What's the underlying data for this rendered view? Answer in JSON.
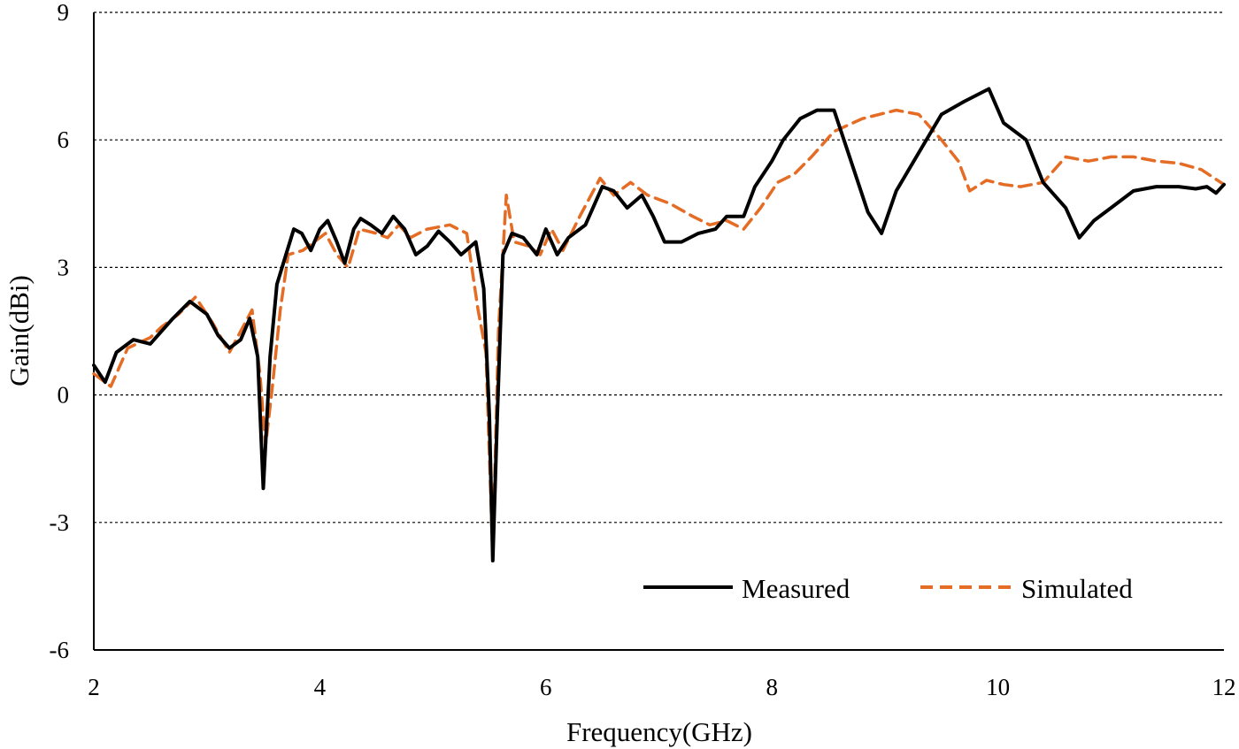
{
  "chart_data": {
    "type": "line",
    "title": "",
    "xlabel": "Frequency(GHz)",
    "ylabel": "Gain(dBi)",
    "xlim": [
      2,
      12
    ],
    "ylim": [
      -6,
      9
    ],
    "xticks": [
      2,
      4,
      6,
      8,
      10,
      12
    ],
    "yticks": [
      -6,
      -3,
      0,
      3,
      6,
      9
    ],
    "xtick_labels": [
      "2",
      "4",
      "6",
      "8",
      "10",
      "12"
    ],
    "ytick_labels": [
      "-6",
      "-3",
      "0",
      "3",
      "6",
      "9"
    ],
    "grid": "horizontal dashed",
    "legend_position": "bottom-right",
    "series": [
      {
        "name": "Measured",
        "color": "#000000",
        "style": "solid",
        "points": [
          [
            2.0,
            0.7
          ],
          [
            2.1,
            0.3
          ],
          [
            2.2,
            1.0
          ],
          [
            2.35,
            1.3
          ],
          [
            2.5,
            1.2
          ],
          [
            2.7,
            1.8
          ],
          [
            2.85,
            2.2
          ],
          [
            3.0,
            1.9
          ],
          [
            3.1,
            1.4
          ],
          [
            3.2,
            1.1
          ],
          [
            3.3,
            1.3
          ],
          [
            3.38,
            1.8
          ],
          [
            3.45,
            0.9
          ],
          [
            3.5,
            -2.2
          ],
          [
            3.56,
            0.9
          ],
          [
            3.62,
            2.6
          ],
          [
            3.7,
            3.3
          ],
          [
            3.77,
            3.9
          ],
          [
            3.84,
            3.8
          ],
          [
            3.92,
            3.4
          ],
          [
            4.0,
            3.9
          ],
          [
            4.07,
            4.1
          ],
          [
            4.15,
            3.6
          ],
          [
            4.22,
            3.1
          ],
          [
            4.3,
            3.9
          ],
          [
            4.36,
            4.15
          ],
          [
            4.45,
            4.0
          ],
          [
            4.55,
            3.8
          ],
          [
            4.65,
            4.2
          ],
          [
            4.75,
            3.9
          ],
          [
            4.85,
            3.3
          ],
          [
            4.95,
            3.5
          ],
          [
            5.05,
            3.85
          ],
          [
            5.15,
            3.6
          ],
          [
            5.25,
            3.3
          ],
          [
            5.38,
            3.6
          ],
          [
            5.45,
            2.5
          ],
          [
            5.5,
            -0.5
          ],
          [
            5.53,
            -3.9
          ],
          [
            5.57,
            -0.5
          ],
          [
            5.62,
            3.3
          ],
          [
            5.7,
            3.8
          ],
          [
            5.8,
            3.7
          ],
          [
            5.92,
            3.3
          ],
          [
            6.0,
            3.9
          ],
          [
            6.1,
            3.3
          ],
          [
            6.2,
            3.7
          ],
          [
            6.35,
            4.0
          ],
          [
            6.5,
            4.9
          ],
          [
            6.6,
            4.8
          ],
          [
            6.72,
            4.4
          ],
          [
            6.85,
            4.7
          ],
          [
            6.95,
            4.2
          ],
          [
            7.05,
            3.6
          ],
          [
            7.2,
            3.6
          ],
          [
            7.35,
            3.8
          ],
          [
            7.5,
            3.9
          ],
          [
            7.6,
            4.2
          ],
          [
            7.75,
            4.2
          ],
          [
            7.85,
            4.9
          ],
          [
            8.0,
            5.5
          ],
          [
            8.1,
            6.0
          ],
          [
            8.25,
            6.5
          ],
          [
            8.4,
            6.7
          ],
          [
            8.55,
            6.7
          ],
          [
            8.7,
            5.5
          ],
          [
            8.85,
            4.3
          ],
          [
            8.97,
            3.8
          ],
          [
            9.1,
            4.8
          ],
          [
            9.3,
            5.7
          ],
          [
            9.5,
            6.6
          ],
          [
            9.7,
            6.9
          ],
          [
            9.92,
            7.2
          ],
          [
            10.05,
            6.4
          ],
          [
            10.25,
            6.0
          ],
          [
            10.4,
            5.0
          ],
          [
            10.6,
            4.4
          ],
          [
            10.72,
            3.7
          ],
          [
            10.85,
            4.1
          ],
          [
            11.0,
            4.4
          ],
          [
            11.2,
            4.8
          ],
          [
            11.4,
            4.9
          ],
          [
            11.6,
            4.9
          ],
          [
            11.75,
            4.85
          ],
          [
            11.85,
            4.9
          ],
          [
            11.93,
            4.75
          ],
          [
            12.0,
            4.95
          ]
        ]
      },
      {
        "name": "Simulated",
        "color": "#E46C24",
        "style": "dashed",
        "points": [
          [
            2.0,
            0.5
          ],
          [
            2.15,
            0.2
          ],
          [
            2.3,
            1.1
          ],
          [
            2.5,
            1.35
          ],
          [
            2.6,
            1.6
          ],
          [
            2.75,
            1.9
          ],
          [
            2.9,
            2.3
          ],
          [
            3.05,
            1.7
          ],
          [
            3.2,
            1.0
          ],
          [
            3.3,
            1.5
          ],
          [
            3.4,
            2.0
          ],
          [
            3.47,
            0.5
          ],
          [
            3.52,
            -1.2
          ],
          [
            3.58,
            0.2
          ],
          [
            3.65,
            2.0
          ],
          [
            3.72,
            3.3
          ],
          [
            3.85,
            3.4
          ],
          [
            3.95,
            3.6
          ],
          [
            4.05,
            3.8
          ],
          [
            4.15,
            3.3
          ],
          [
            4.25,
            3.0
          ],
          [
            4.35,
            3.9
          ],
          [
            4.5,
            3.8
          ],
          [
            4.6,
            3.7
          ],
          [
            4.7,
            4.0
          ],
          [
            4.8,
            3.7
          ],
          [
            4.95,
            3.9
          ],
          [
            5.15,
            4.0
          ],
          [
            5.3,
            3.8
          ],
          [
            5.4,
            2.0
          ],
          [
            5.47,
            1.0
          ],
          [
            5.53,
            -3.8
          ],
          [
            5.58,
            1.5
          ],
          [
            5.65,
            4.7
          ],
          [
            5.72,
            3.6
          ],
          [
            5.85,
            3.5
          ],
          [
            5.95,
            3.3
          ],
          [
            6.05,
            3.9
          ],
          [
            6.15,
            3.4
          ],
          [
            6.3,
            4.2
          ],
          [
            6.48,
            5.1
          ],
          [
            6.6,
            4.7
          ],
          [
            6.75,
            5.0
          ],
          [
            6.9,
            4.7
          ],
          [
            7.1,
            4.5
          ],
          [
            7.3,
            4.2
          ],
          [
            7.45,
            4.0
          ],
          [
            7.6,
            4.1
          ],
          [
            7.75,
            3.9
          ],
          [
            7.9,
            4.4
          ],
          [
            8.05,
            5.0
          ],
          [
            8.2,
            5.2
          ],
          [
            8.35,
            5.6
          ],
          [
            8.55,
            6.2
          ],
          [
            8.8,
            6.5
          ],
          [
            9.1,
            6.7
          ],
          [
            9.3,
            6.6
          ],
          [
            9.5,
            6.0
          ],
          [
            9.65,
            5.5
          ],
          [
            9.75,
            4.8
          ],
          [
            9.9,
            5.05
          ],
          [
            10.05,
            4.95
          ],
          [
            10.2,
            4.9
          ],
          [
            10.4,
            5.0
          ],
          [
            10.6,
            5.6
          ],
          [
            10.8,
            5.5
          ],
          [
            11.0,
            5.6
          ],
          [
            11.2,
            5.6
          ],
          [
            11.4,
            5.5
          ],
          [
            11.6,
            5.45
          ],
          [
            11.8,
            5.3
          ],
          [
            12.0,
            4.95
          ]
        ]
      }
    ]
  }
}
